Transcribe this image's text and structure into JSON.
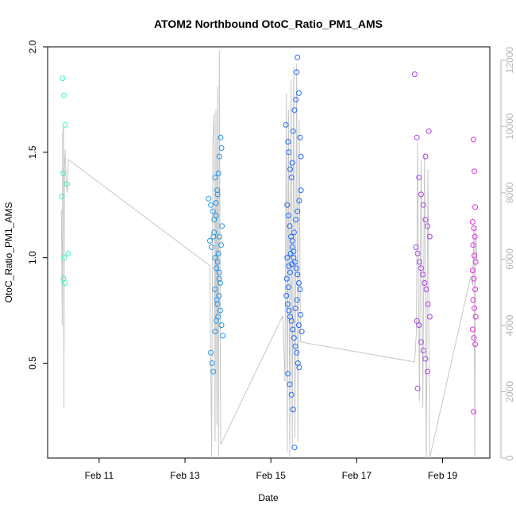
{
  "chart_data": {
    "type": "scatter",
    "title": "ATOM2 Northbound OtoC_Ratio_PM1_AMS",
    "xlabel": "Date",
    "ylabel": "OtoC_Ratio_PM1_AMS",
    "x_unit": "days",
    "x_tick_labels": [
      "Feb 11",
      "Feb 13",
      "Feb 15",
      "Feb 17",
      "Feb 19"
    ],
    "x_tick_values": [
      11,
      13,
      15,
      17,
      19
    ],
    "xlim": [
      9.8,
      20.1
    ],
    "ylim": [
      0.05,
      2.0
    ],
    "y_ticks": [
      0.5,
      1.0,
      1.5,
      2.0
    ],
    "y_tick_labels": [
      "0.5",
      "1.0",
      "1.5",
      "2.0"
    ],
    "y2lim": [
      0,
      12400
    ],
    "y2_ticks": [
      0,
      2000,
      4000,
      6000,
      8000,
      10000,
      12000
    ],
    "y2_tick_labels": [
      "0",
      "2000",
      "4000",
      "6000",
      "8000",
      "10000",
      "12000"
    ],
    "grid": false,
    "colors": {
      "points_start": "#39f5c3",
      "points_mid": "#1a6bff",
      "points_end": "#e52fe6",
      "line": "#c7c7c7",
      "axis": "#000000",
      "right_axis": "#b3b3b3"
    },
    "series": [
      {
        "points": [
          [
            10.15,
            1.85
          ],
          [
            10.18,
            1.77
          ],
          [
            10.21,
            1.63
          ],
          [
            10.16,
            1.4
          ],
          [
            10.25,
            1.35
          ],
          [
            10.13,
            1.29
          ],
          [
            10.28,
            1.02
          ],
          [
            10.19,
            1.0
          ],
          [
            10.17,
            0.9
          ],
          [
            10.2,
            0.88
          ],
          [
            13.55,
            1.28
          ],
          [
            13.6,
            1.25
          ],
          [
            13.65,
            1.22
          ],
          [
            13.7,
            1.38
          ],
          [
            13.72,
            1.2
          ],
          [
            13.75,
            1.32
          ],
          [
            13.78,
            1.4
          ],
          [
            13.8,
            1.48
          ],
          [
            13.83,
            1.57
          ],
          [
            13.85,
            1.52
          ],
          [
            13.58,
            1.08
          ],
          [
            13.62,
            1.05
          ],
          [
            13.66,
            1.1
          ],
          [
            13.68,
            1.12
          ],
          [
            13.7,
            1.0
          ],
          [
            13.73,
            0.95
          ],
          [
            13.76,
            0.98
          ],
          [
            13.78,
            1.02
          ],
          [
            13.8,
            0.93
          ],
          [
            13.82,
            0.88
          ],
          [
            13.6,
            0.55
          ],
          [
            13.63,
            0.5
          ],
          [
            13.66,
            0.46
          ],
          [
            13.7,
            0.65
          ],
          [
            13.73,
            0.7
          ],
          [
            13.76,
            0.78
          ],
          [
            13.79,
            0.82
          ],
          [
            13.82,
            0.75
          ],
          [
            13.85,
            0.68
          ],
          [
            13.88,
            0.63
          ],
          [
            13.7,
            0.85
          ],
          [
            13.74,
            0.8
          ],
          [
            13.77,
            0.72
          ],
          [
            13.8,
            0.9
          ],
          [
            13.84,
            1.06
          ],
          [
            13.86,
            1.15
          ],
          [
            13.68,
            1.18
          ],
          [
            13.72,
            1.26
          ],
          [
            13.76,
            1.3
          ],
          [
            13.8,
            1.1
          ],
          [
            15.35,
            1.63
          ],
          [
            15.4,
            1.55
          ],
          [
            15.42,
            1.5
          ],
          [
            15.45,
            1.42
          ],
          [
            15.48,
            1.38
          ],
          [
            15.5,
            1.45
          ],
          [
            15.52,
            1.6
          ],
          [
            15.55,
            1.7
          ],
          [
            15.58,
            1.75
          ],
          [
            15.6,
            1.88
          ],
          [
            15.62,
            1.95
          ],
          [
            15.65,
            1.78
          ],
          [
            15.68,
            1.57
          ],
          [
            15.7,
            1.48
          ],
          [
            15.38,
            1.25
          ],
          [
            15.41,
            1.2
          ],
          [
            15.44,
            1.15
          ],
          [
            15.47,
            1.1
          ],
          [
            15.5,
            1.05
          ],
          [
            15.53,
            1.0
          ],
          [
            15.56,
            0.98
          ],
          [
            15.59,
            0.95
          ],
          [
            15.62,
            0.92
          ],
          [
            15.65,
            0.88
          ],
          [
            15.68,
            0.85
          ],
          [
            15.36,
            0.82
          ],
          [
            15.39,
            0.78
          ],
          [
            15.42,
            0.75
          ],
          [
            15.45,
            0.72
          ],
          [
            15.48,
            0.7
          ],
          [
            15.51,
            0.66
          ],
          [
            15.54,
            0.62
          ],
          [
            15.57,
            0.58
          ],
          [
            15.6,
            0.55
          ],
          [
            15.63,
            0.5
          ],
          [
            15.66,
            0.48
          ],
          [
            15.4,
            0.45
          ],
          [
            15.44,
            0.4
          ],
          [
            15.48,
            0.35
          ],
          [
            15.52,
            0.28
          ],
          [
            15.55,
            0.1
          ],
          [
            15.38,
            1.0
          ],
          [
            15.42,
            0.96
          ],
          [
            15.46,
            1.02
          ],
          [
            15.5,
            1.08
          ],
          [
            15.54,
            1.12
          ],
          [
            15.58,
            1.18
          ],
          [
            15.62,
            1.22
          ],
          [
            15.66,
            1.27
          ],
          [
            15.7,
            1.32
          ],
          [
            15.37,
            0.9
          ],
          [
            15.41,
            0.86
          ],
          [
            15.45,
            0.93
          ],
          [
            15.49,
            0.97
          ],
          [
            15.53,
            1.03
          ],
          [
            15.57,
            0.76
          ],
          [
            15.61,
            0.8
          ],
          [
            15.65,
            0.68
          ],
          [
            15.69,
            0.73
          ],
          [
            15.72,
            0.65
          ],
          [
            18.35,
            1.87
          ],
          [
            18.4,
            1.57
          ],
          [
            18.45,
            1.38
          ],
          [
            18.5,
            1.3
          ],
          [
            18.55,
            1.25
          ],
          [
            18.6,
            1.18
          ],
          [
            18.65,
            1.15
          ],
          [
            18.7,
            1.1
          ],
          [
            18.38,
            1.05
          ],
          [
            18.42,
            1.02
          ],
          [
            18.46,
            0.98
          ],
          [
            18.5,
            0.95
          ],
          [
            18.54,
            0.92
          ],
          [
            18.58,
            0.88
          ],
          [
            18.62,
            0.85
          ],
          [
            18.66,
            0.78
          ],
          [
            18.7,
            0.72
          ],
          [
            18.4,
            0.7
          ],
          [
            18.45,
            0.68
          ],
          [
            18.5,
            0.6
          ],
          [
            18.55,
            0.56
          ],
          [
            18.6,
            0.52
          ],
          [
            18.65,
            0.46
          ],
          [
            18.42,
            0.38
          ],
          [
            18.6,
            1.48
          ],
          [
            18.68,
            1.6
          ],
          [
            19.72,
            1.56
          ],
          [
            19.74,
            1.41
          ],
          [
            19.76,
            1.24
          ],
          [
            19.7,
            1.17
          ],
          [
            19.73,
            1.14
          ],
          [
            19.75,
            1.1
          ],
          [
            19.71,
            1.06
          ],
          [
            19.74,
            1.01
          ],
          [
            19.77,
            0.98
          ],
          [
            19.7,
            0.94
          ],
          [
            19.73,
            0.9
          ],
          [
            19.76,
            0.85
          ],
          [
            19.71,
            0.8
          ],
          [
            19.74,
            0.76
          ],
          [
            19.77,
            0.72
          ],
          [
            19.7,
            0.66
          ],
          [
            19.73,
            0.62
          ],
          [
            19.76,
            0.59
          ],
          [
            19.72,
            0.27
          ]
        ]
      },
      {
        "axis": "right",
        "line": [
          [
            10.12,
            7500
          ],
          [
            10.14,
            4000
          ],
          [
            10.15,
            9800
          ],
          [
            10.17,
            10000
          ],
          [
            10.18,
            1500
          ],
          [
            10.19,
            8700
          ],
          [
            10.21,
            9300
          ],
          [
            10.23,
            8300
          ],
          [
            10.26,
            8000
          ],
          [
            10.28,
            9000
          ],
          [
            13.58,
            5800
          ],
          [
            13.62,
            0
          ],
          [
            13.65,
            9600
          ],
          [
            13.68,
            10400
          ],
          [
            13.7,
            500
          ],
          [
            13.72,
            10500
          ],
          [
            13.74,
            1000
          ],
          [
            13.76,
            11200
          ],
          [
            13.78,
            0
          ],
          [
            13.8,
            12300
          ],
          [
            13.83,
            400
          ],
          [
            15.28,
            4300
          ],
          [
            15.33,
            2300
          ],
          [
            15.36,
            11000
          ],
          [
            15.38,
            200
          ],
          [
            15.41,
            10500
          ],
          [
            15.44,
            0
          ],
          [
            15.47,
            11400
          ],
          [
            15.5,
            300
          ],
          [
            15.53,
            11800
          ],
          [
            15.56,
            600
          ],
          [
            15.6,
            11900
          ],
          [
            15.63,
            500
          ],
          [
            15.66,
            10200
          ],
          [
            15.69,
            3500
          ],
          [
            18.35,
            2900
          ],
          [
            18.39,
            3800
          ],
          [
            18.42,
            9500
          ],
          [
            18.46,
            1700
          ],
          [
            18.5,
            9000
          ],
          [
            18.54,
            1500
          ],
          [
            18.58,
            9200
          ],
          [
            18.62,
            0
          ],
          [
            18.66,
            8700
          ],
          [
            18.7,
            0
          ],
          [
            19.66,
            5500
          ],
          [
            19.7,
            5200
          ],
          [
            19.73,
            7000
          ],
          [
            19.75,
            0
          ],
          [
            19.77,
            7000
          ],
          [
            19.8,
            5900
          ]
        ]
      }
    ]
  }
}
